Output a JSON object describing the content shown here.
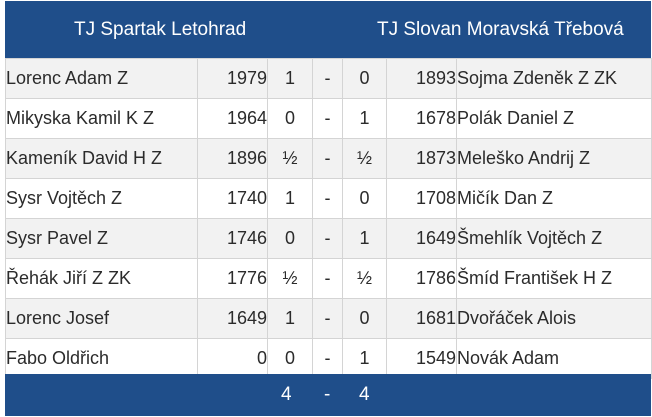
{
  "header": {
    "home_team": "TJ Spartak Letohrad",
    "away_team": "TJ Slovan Moravská Třebová"
  },
  "separator": "-",
  "rows": [
    {
      "home_player": "Lorenc Adam Z",
      "home_rating": "1979",
      "home_score": "1",
      "away_score": "0",
      "away_rating": "1893",
      "away_player": "Sojma Zdeněk Z ZK"
    },
    {
      "home_player": "Mikyska Kamil K Z",
      "home_rating": "1964",
      "home_score": "0",
      "away_score": "1",
      "away_rating": "1678",
      "away_player": "Polák Daniel Z"
    },
    {
      "home_player": "Kameník David H Z",
      "home_rating": "1896",
      "home_score": "½",
      "away_score": "½",
      "away_rating": "1873",
      "away_player": "Meleško Andrij Z"
    },
    {
      "home_player": "Sysr Vojtěch Z",
      "home_rating": "1740",
      "home_score": "1",
      "away_score": "0",
      "away_rating": "1708",
      "away_player": "Mičík Dan Z"
    },
    {
      "home_player": "Sysr Pavel Z",
      "home_rating": "1746",
      "home_score": "0",
      "away_score": "1",
      "away_rating": "1649",
      "away_player": "Šmehlík Vojtěch Z"
    },
    {
      "home_player": "Řehák Jiří Z ZK",
      "home_rating": "1776",
      "home_score": "½",
      "away_score": "½",
      "away_rating": "1786",
      "away_player": "Šmíd František H Z"
    },
    {
      "home_player": "Lorenc Josef",
      "home_rating": "1649",
      "home_score": "1",
      "away_score": "0",
      "away_rating": "1681",
      "away_player": "Dvořáček Alois"
    },
    {
      "home_player": "Fabo Oldřich",
      "home_rating": "0",
      "home_score": "0",
      "away_score": "1",
      "away_rating": "1549",
      "away_player": "Novák Adam"
    }
  ],
  "footer": {
    "home_total": "4",
    "away_total": "4"
  },
  "colors": {
    "header_bg": "#1f4e8a",
    "row_odd_bg": "#f2f2f2",
    "row_even_bg": "#ffffff"
  }
}
